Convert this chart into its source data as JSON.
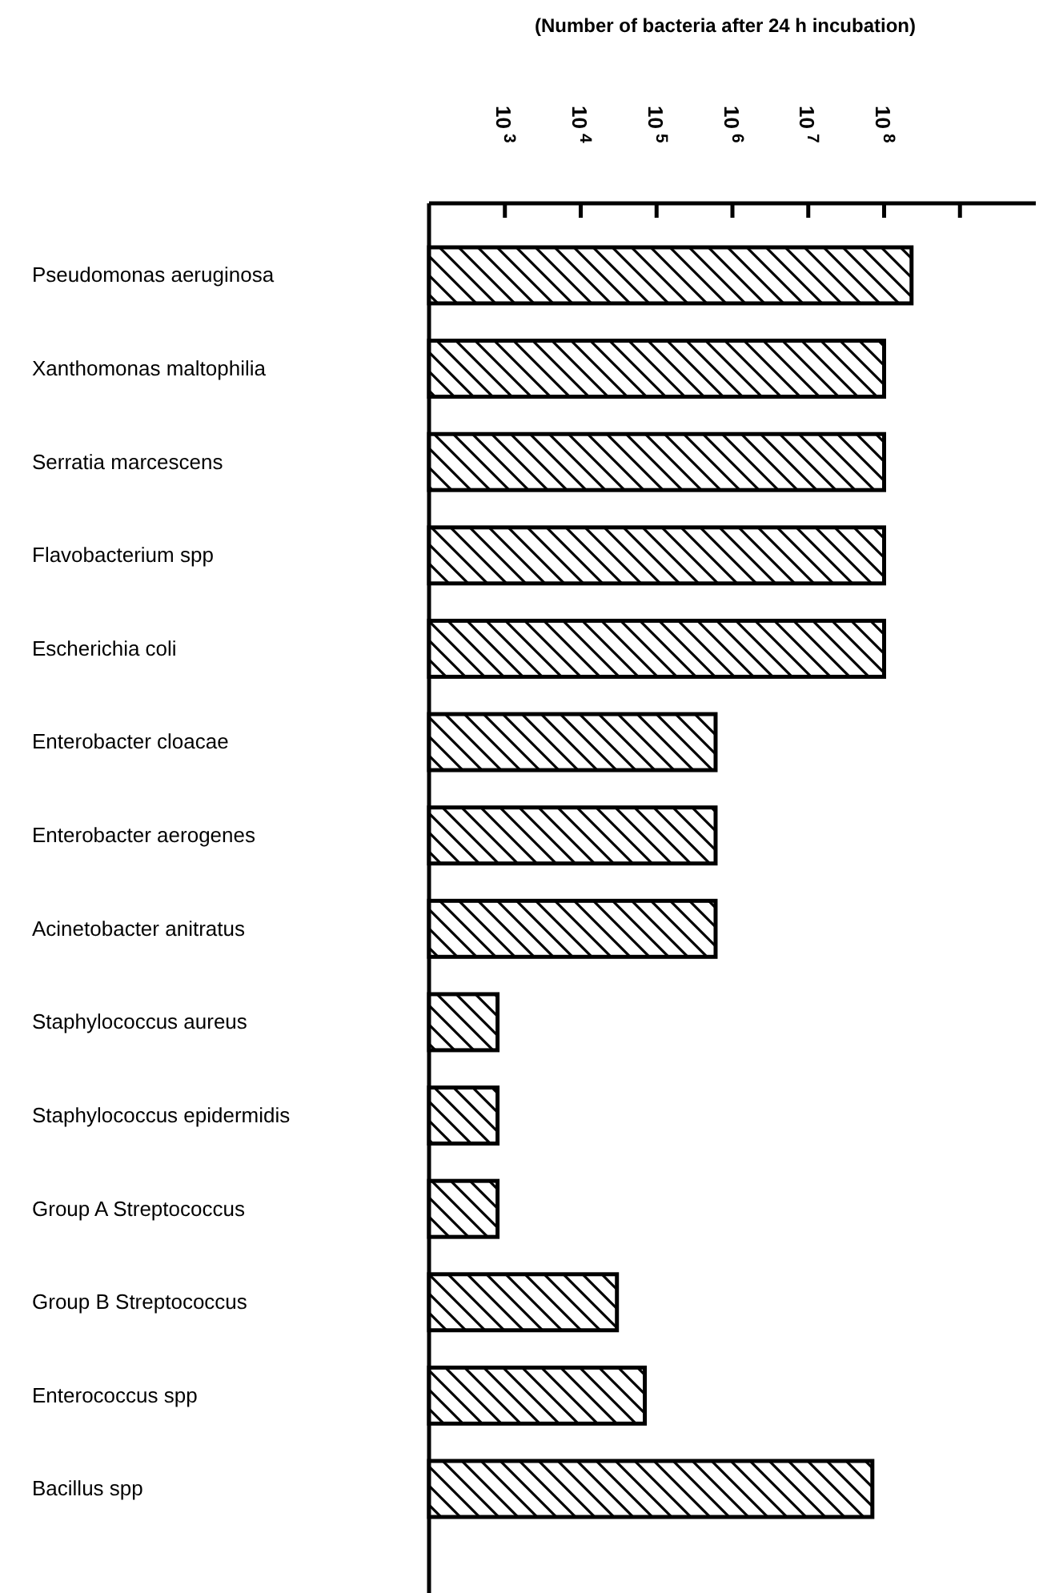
{
  "chart_data": {
    "type": "bar",
    "orientation": "horizontal",
    "log": "x",
    "xlabel": "(Number of bacteria after 24 h incubation)",
    "categories": [
      "Pseudomonas aeruginosa",
      "Xanthomonas maltophilia",
      "Serratia marcescens",
      "Flavobacterium spp",
      "Escherichia coli",
      "Enterobacter cloacae",
      "Enterobacter aerogenes",
      "Acinetobacter anitratus",
      "Staphylococcus aureus",
      "Staphylococcus epidermidis",
      "Group A Streptococcus",
      "Group B Streptococcus",
      "Enterococcus spp",
      "Bacillus spp"
    ],
    "values": [
      230000000,
      100000000,
      100000000,
      100000000,
      100000000,
      600000,
      600000,
      600000,
      800,
      800,
      800,
      30000,
      70000,
      70000000
    ],
    "color": "#000000",
    "xlim": [
      100,
      10000000000
    ],
    "xticks": [
      {
        "value": 1000,
        "label": "10$^{3}$"
      },
      {
        "value": 10000,
        "label": "10$^{4}$"
      },
      {
        "value": 100000,
        "label": "10$^{5}$"
      },
      {
        "value": 1000000,
        "label": "10$^{6}$"
      },
      {
        "value": 10000000,
        "label": "10$^{7}$"
      },
      {
        "value": 100000000,
        "label": "10$^{8}$"
      },
      {
        "value": 1000000000,
        "label": null
      }
    ],
    "grid": false
  }
}
